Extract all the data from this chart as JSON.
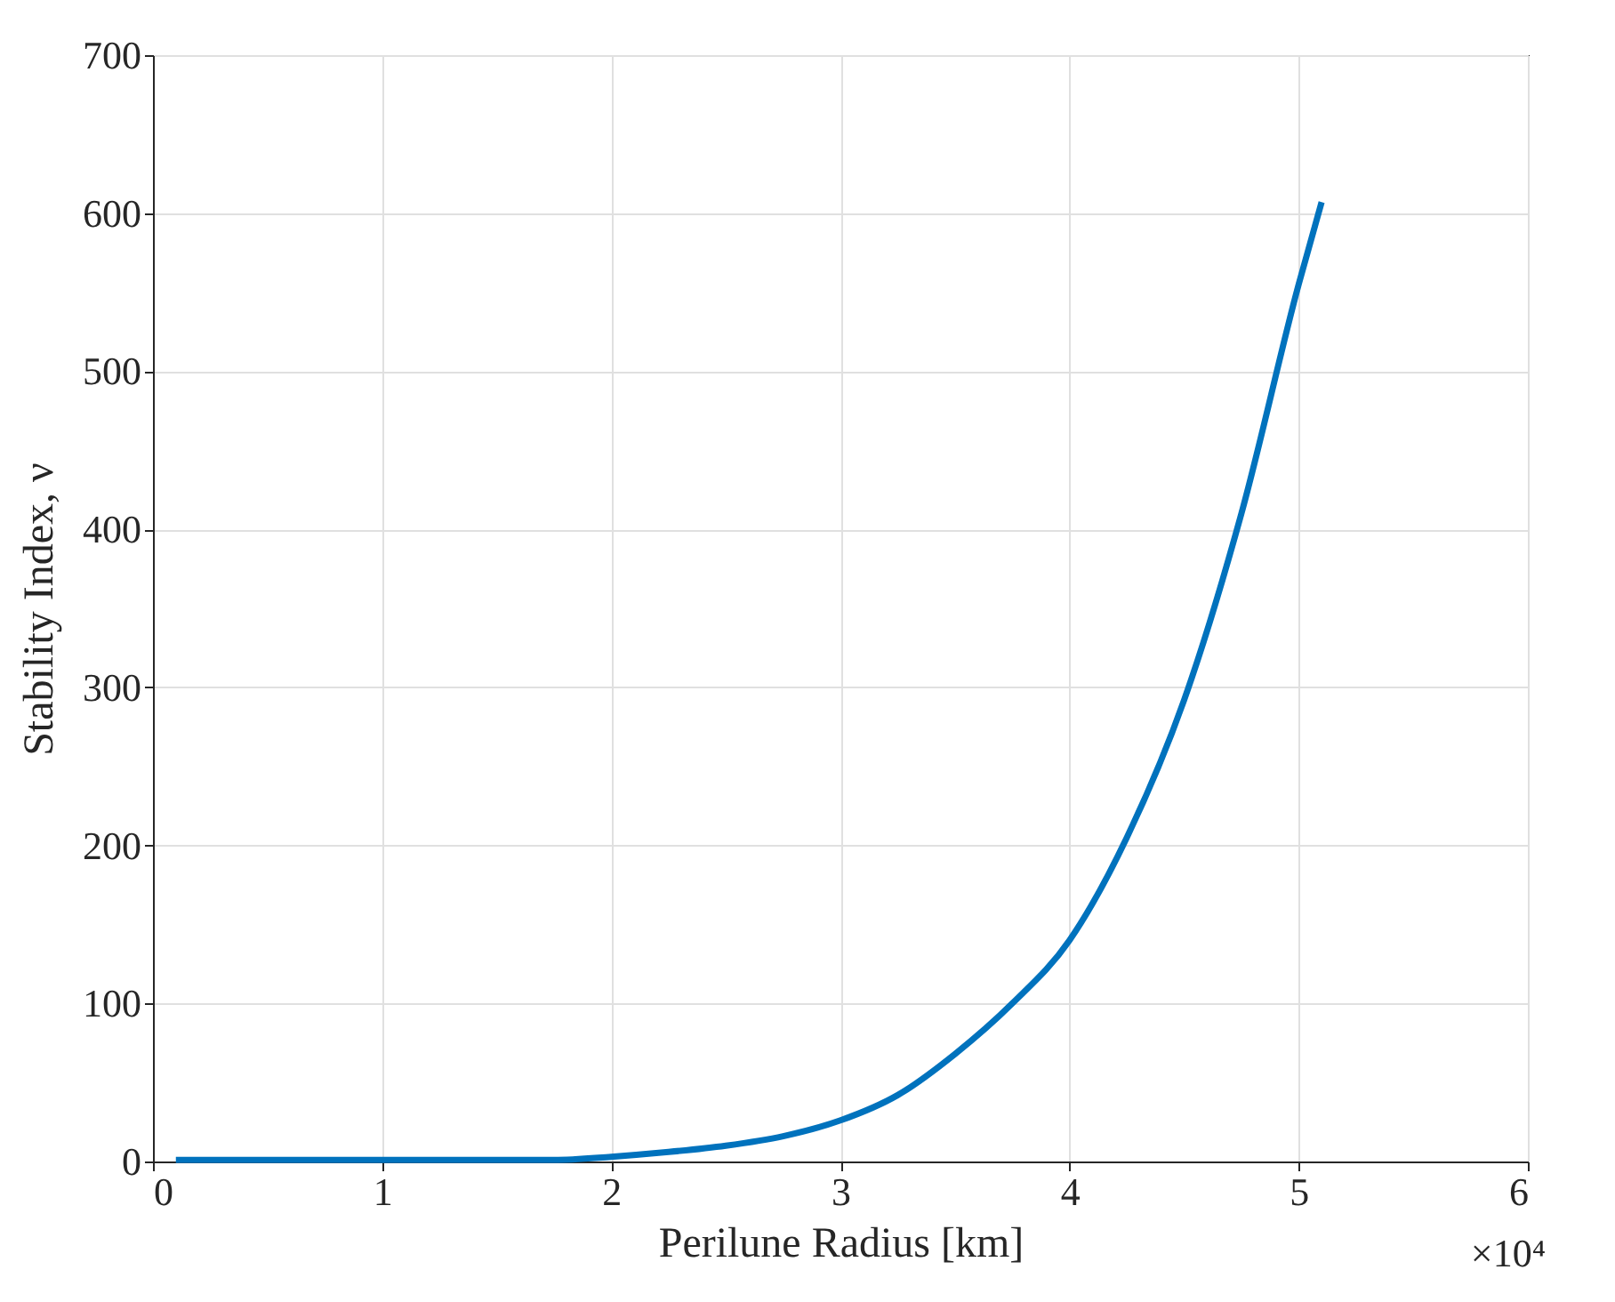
{
  "chart_data": {
    "type": "line",
    "xlabel": "Perilune Radius [km]",
    "ylabel": "Stability Index, ν",
    "x": [
      0.1,
      1,
      1.75,
      2,
      2.25,
      2.5,
      2.75,
      3,
      3.25,
      3.5,
      3.75,
      4,
      4.25,
      4.5,
      4.75,
      5,
      5.1
    ],
    "series": [
      {
        "color": "#0072bd",
        "values": [
          1,
          1,
          1,
          3,
          6,
          10,
          16,
          26,
          42,
          68,
          100,
          140,
          205,
          292,
          410,
          555,
          607
        ]
      }
    ],
    "xlim": [
      0,
      6
    ],
    "xticks": [
      0,
      1,
      2,
      3,
      4,
      5,
      6
    ],
    "ylim": [
      0,
      700
    ],
    "yticks": [
      0,
      100,
      200,
      300,
      400,
      500,
      600,
      700
    ],
    "annotations": [
      "×10⁴"
    ],
    "grid": true,
    "line_style": "solid",
    "marker": "none"
  }
}
